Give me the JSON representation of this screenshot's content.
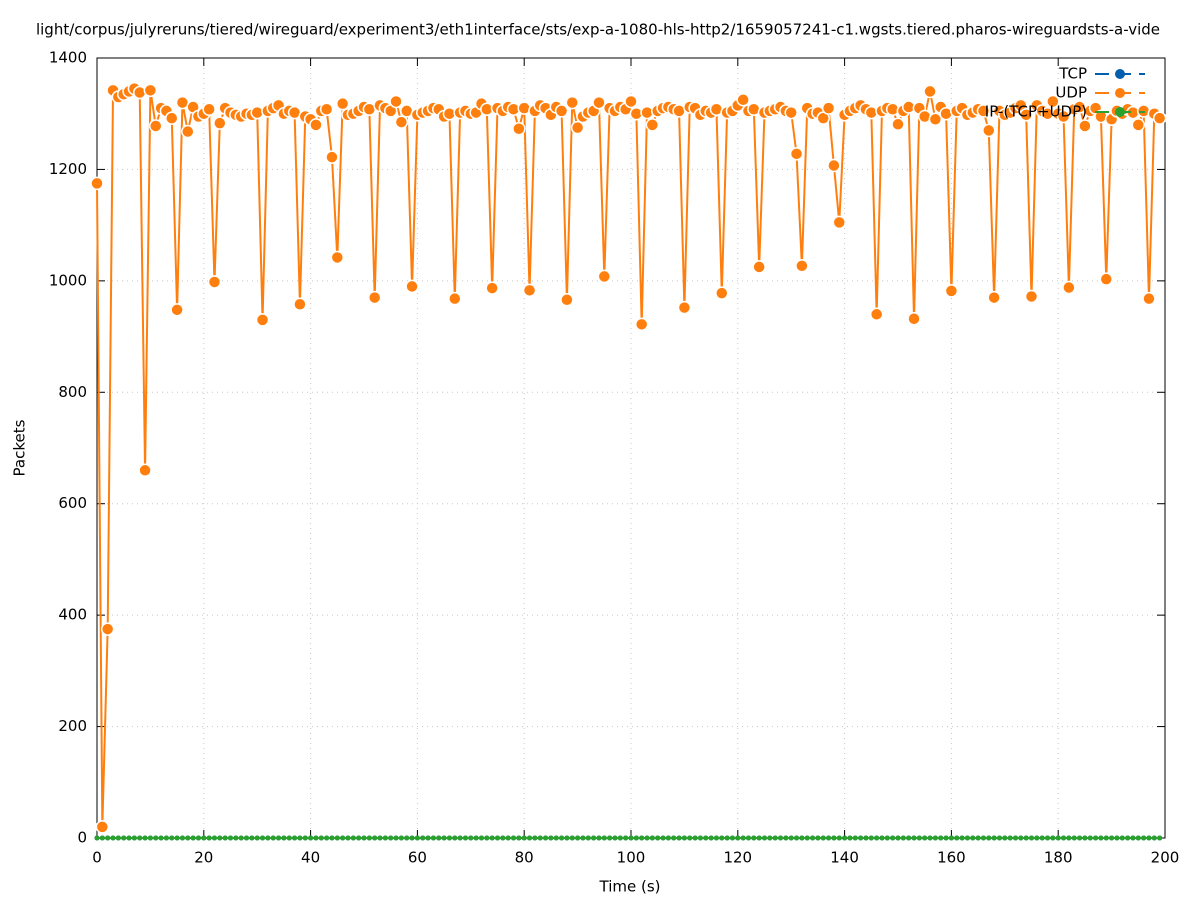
{
  "chart_data": {
    "type": "line",
    "title": "light/corpus/julyreruns/tiered/wireguard/experiment3/eth1interface/sts/exp-a-1080-hls-http2/1659057241-c1.wgsts.tiered.pharos-wireguardsts-a-vide",
    "x_label": "Time (s)",
    "y_label": "Packets",
    "xlim": [
      0,
      200
    ],
    "ylim": [
      0,
      1400
    ],
    "xticks": [
      0,
      20,
      40,
      60,
      80,
      100,
      120,
      140,
      160,
      180,
      200
    ],
    "yticks": [
      0,
      200,
      400,
      600,
      800,
      1000,
      1200,
      1400
    ],
    "grid": true,
    "legend": "top-right",
    "x": [
      0,
      1,
      2,
      3,
      4,
      5,
      6,
      7,
      8,
      9,
      10,
      11,
      12,
      13,
      14,
      15,
      16,
      17,
      18,
      19,
      20,
      21,
      22,
      23,
      24,
      25,
      26,
      27,
      28,
      29,
      30,
      31,
      32,
      33,
      34,
      35,
      36,
      37,
      38,
      39,
      40,
      41,
      42,
      43,
      44,
      45,
      46,
      47,
      48,
      49,
      50,
      51,
      52,
      53,
      54,
      55,
      56,
      57,
      58,
      59,
      60,
      61,
      62,
      63,
      64,
      65,
      66,
      67,
      68,
      69,
      70,
      71,
      72,
      73,
      74,
      75,
      76,
      77,
      78,
      79,
      80,
      81,
      82,
      83,
      84,
      85,
      86,
      87,
      88,
      89,
      90,
      91,
      92,
      93,
      94,
      95,
      96,
      97,
      98,
      99,
      100,
      101,
      102,
      103,
      104,
      105,
      106,
      107,
      108,
      109,
      110,
      111,
      112,
      113,
      114,
      115,
      116,
      117,
      118,
      119,
      120,
      121,
      122,
      123,
      124,
      125,
      126,
      127,
      128,
      129,
      130,
      131,
      132,
      133,
      134,
      135,
      136,
      137,
      138,
      139,
      140,
      141,
      142,
      143,
      144,
      145,
      146,
      147,
      148,
      149,
      150,
      151,
      152,
      153,
      154,
      155,
      156,
      157,
      158,
      159,
      160,
      161,
      162,
      163,
      164,
      165,
      166,
      167,
      168,
      169,
      170,
      171,
      172,
      173,
      174,
      175,
      176,
      177,
      178,
      179,
      180,
      181,
      182,
      183,
      184,
      185,
      186,
      187,
      188,
      189,
      190,
      191,
      192,
      193,
      194,
      195,
      196,
      197,
      198,
      199
    ],
    "series": [
      {
        "name": "TCP",
        "color": "#0060ad",
        "values": [
          0,
          0,
          0,
          0,
          0,
          0,
          0,
          0,
          0,
          0,
          0,
          0,
          0,
          0,
          0,
          0,
          0,
          0,
          0,
          0,
          0,
          0,
          0,
          0,
          0,
          0,
          0,
          0,
          0,
          0,
          0,
          0,
          0,
          0,
          0,
          0,
          0,
          0,
          0,
          0,
          0,
          0,
          0,
          0,
          0,
          0,
          0,
          0,
          0,
          0,
          0,
          0,
          0,
          0,
          0,
          0,
          0,
          0,
          0,
          0,
          0,
          0,
          0,
          0,
          0,
          0,
          0,
          0,
          0,
          0,
          0,
          0,
          0,
          0,
          0,
          0,
          0,
          0,
          0,
          0,
          0,
          0,
          0,
          0,
          0,
          0,
          0,
          0,
          0,
          0,
          0,
          0,
          0,
          0,
          0,
          0,
          0,
          0,
          0,
          0,
          0,
          0,
          0,
          0,
          0,
          0,
          0,
          0,
          0,
          0,
          0,
          0,
          0,
          0,
          0,
          0,
          0,
          0,
          0,
          0,
          0,
          0,
          0,
          0,
          0,
          0,
          0,
          0,
          0,
          0,
          0,
          0,
          0,
          0,
          0,
          0,
          0,
          0,
          0,
          0,
          0,
          0,
          0,
          0,
          0,
          0,
          0,
          0,
          0,
          0,
          0,
          0,
          0,
          0,
          0,
          0,
          0,
          0,
          0,
          0,
          0,
          0,
          0,
          0,
          0,
          0,
          0,
          0,
          0,
          0,
          0,
          0,
          0,
          0,
          0,
          0,
          0,
          0,
          0,
          0,
          0,
          0,
          0,
          0,
          0,
          0,
          0,
          0,
          0,
          0,
          0,
          0,
          0,
          0,
          0,
          0,
          0,
          0,
          0,
          0
        ]
      },
      {
        "name": "UDP",
        "color": "#ff7f0e",
        "values": [
          1175,
          20,
          375,
          1342,
          1330,
          1335,
          1340,
          1345,
          1338,
          660,
          1342,
          1278,
          1310,
          1305,
          1292,
          948,
          1320,
          1268,
          1312,
          1295,
          1300,
          1308,
          998,
          1283,
          1310,
          1302,
          1298,
          1295,
          1300,
          1298,
          1302,
          930,
          1305,
          1310,
          1315,
          1300,
          1305,
          1302,
          958,
          1295,
          1290,
          1280,
          1305,
          1308,
          1222,
          1042,
          1318,
          1298,
          1300,
          1305,
          1312,
          1308,
          970,
          1315,
          1310,
          1305,
          1322,
          1285,
          1305,
          990,
          1298,
          1302,
          1305,
          1310,
          1308,
          1295,
          1300,
          968,
          1302,
          1305,
          1300,
          1302,
          1318,
          1308,
          987,
          1310,
          1305,
          1312,
          1308,
          1273,
          1310,
          983,
          1305,
          1315,
          1310,
          1298,
          1312,
          1305,
          966,
          1320,
          1275,
          1295,
          1302,
          1305,
          1320,
          1008,
          1310,
          1305,
          1312,
          1308,
          1322,
          1300,
          922,
          1302,
          1280,
          1305,
          1310,
          1312,
          1308,
          1305,
          952,
          1312,
          1310,
          1298,
          1305,
          1302,
          1308,
          978,
          1302,
          1305,
          1315,
          1325,
          1305,
          1308,
          1025,
          1302,
          1305,
          1308,
          1312,
          1305,
          1302,
          1228,
          1027,
          1310,
          1300,
          1302,
          1292,
          1310,
          1207,
          1105,
          1298,
          1305,
          1310,
          1315,
          1308,
          1302,
          940,
          1305,
          1310,
          1308,
          1281,
          1305,
          1312,
          932,
          1310,
          1295,
          1340,
          1290,
          1312,
          1300,
          982,
          1305,
          1310,
          1298,
          1302,
          1308,
          1305,
          1270,
          970,
          1305,
          1298,
          1302,
          1310,
          1315,
          1298,
          972,
          1315,
          1305,
          1300,
          1322,
          1300,
          1295,
          988,
          1308,
          1312,
          1278,
          1305,
          1310,
          1295,
          1003,
          1290,
          1305,
          1300,
          1308,
          1302,
          1280,
          1305,
          968,
          1300,
          1292
        ]
      },
      {
        "name": "IP-(TCP+UDP)",
        "color": "#2ca02c",
        "values": [
          0,
          0,
          0,
          0,
          0,
          0,
          0,
          0,
          0,
          0,
          0,
          0,
          0,
          0,
          0,
          0,
          0,
          0,
          0,
          0,
          0,
          0,
          0,
          0,
          0,
          0,
          0,
          0,
          0,
          0,
          0,
          0,
          0,
          0,
          0,
          0,
          0,
          0,
          0,
          0,
          0,
          0,
          0,
          0,
          0,
          0,
          0,
          0,
          0,
          0,
          0,
          0,
          0,
          0,
          0,
          0,
          0,
          0,
          0,
          0,
          0,
          0,
          0,
          0,
          0,
          0,
          0,
          0,
          0,
          0,
          0,
          0,
          0,
          0,
          0,
          0,
          0,
          0,
          0,
          0,
          0,
          0,
          0,
          0,
          0,
          0,
          0,
          0,
          0,
          0,
          0,
          0,
          0,
          0,
          0,
          0,
          0,
          0,
          0,
          0,
          0,
          0,
          0,
          0,
          0,
          0,
          0,
          0,
          0,
          0,
          0,
          0,
          0,
          0,
          0,
          0,
          0,
          0,
          0,
          0,
          0,
          0,
          0,
          0,
          0,
          0,
          0,
          0,
          0,
          0,
          0,
          0,
          0,
          0,
          0,
          0,
          0,
          0,
          0,
          0,
          0,
          0,
          0,
          0,
          0,
          0,
          0,
          0,
          0,
          0,
          0,
          0,
          0,
          0,
          0,
          0,
          0,
          0,
          0,
          0,
          0,
          0,
          0,
          0,
          0,
          0,
          0,
          0,
          0,
          0,
          0,
          0,
          0,
          0,
          0,
          0,
          0,
          0,
          0,
          0,
          0,
          0,
          0,
          0,
          0,
          0,
          0,
          0,
          0,
          0,
          0,
          0,
          0,
          0,
          0,
          0,
          0,
          0,
          0,
          0
        ]
      }
    ]
  }
}
